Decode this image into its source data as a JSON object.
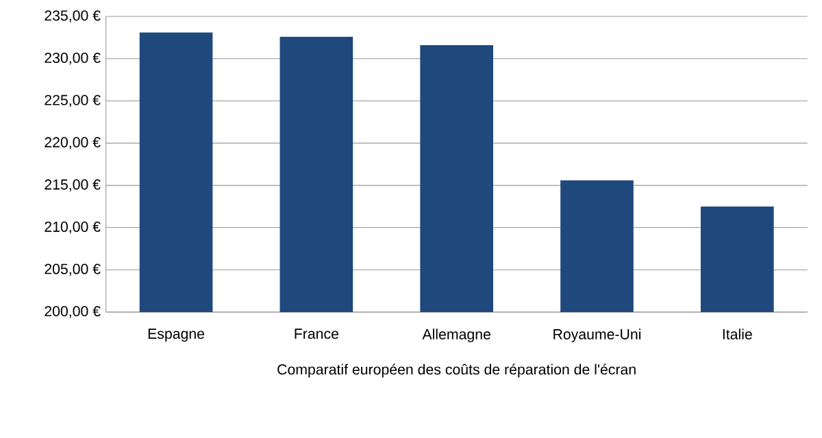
{
  "chart_data": {
    "type": "bar",
    "xlabel": "Comparatif européen des coûts de réparation de l'écran",
    "categories": [
      "Espagne",
      "France",
      "Allemagne",
      "Royaume-Uni",
      "Italie"
    ],
    "values": [
      233.1,
      232.6,
      231.6,
      215.6,
      212.5
    ],
    "color": "#1f497d",
    "ylim": [
      200,
      235
    ],
    "yticks": [
      {
        "value": 200,
        "label": "200,00 €"
      },
      {
        "value": 205,
        "label": "205,00 €"
      },
      {
        "value": 210,
        "label": "210,00 €"
      },
      {
        "value": 215,
        "label": "215,00 €"
      },
      {
        "value": 220,
        "label": "220,00 €"
      },
      {
        "value": 225,
        "label": "225,00 €"
      },
      {
        "value": 230,
        "label": "230,00 €"
      },
      {
        "value": 235,
        "label": "235,00 €"
      }
    ],
    "grid": "y"
  }
}
